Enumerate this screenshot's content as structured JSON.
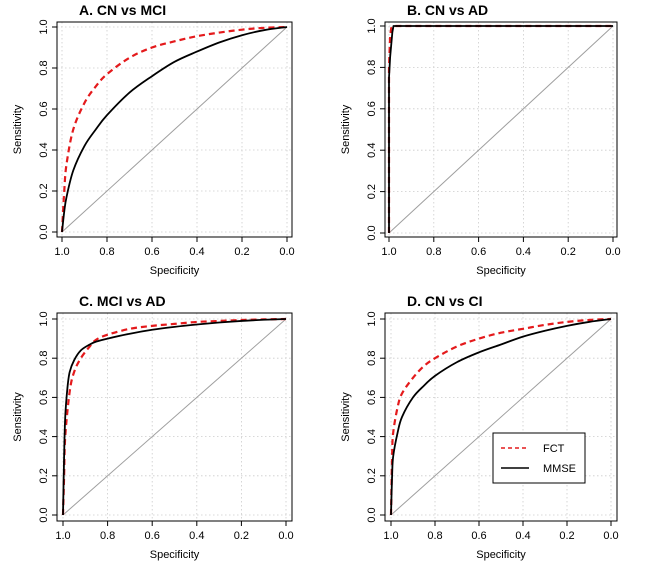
{
  "chart_data": [
    {
      "type": "line",
      "title": "A. CN vs MCI",
      "xlabel": "Specificity",
      "ylabel": "Sensitivity",
      "xlim": [
        1.0,
        0.0
      ],
      "ylim": [
        0.0,
        1.0
      ],
      "x_ticks": [
        "1.0",
        "0.8",
        "0.6",
        "0.4",
        "0.2",
        "0.0"
      ],
      "y_ticks": [
        "0.0",
        "0.2",
        "0.4",
        "0.6",
        "0.8",
        "1.0"
      ],
      "grid": true,
      "diagonal": true,
      "series": [
        {
          "name": "FCT",
          "style": "dashed",
          "color": "#e41a1c",
          "x": [
            1.0,
            0.99,
            0.98,
            0.95,
            0.9,
            0.85,
            0.8,
            0.7,
            0.6,
            0.5,
            0.4,
            0.3,
            0.2,
            0.1,
            0.0
          ],
          "y": [
            0.0,
            0.2,
            0.33,
            0.5,
            0.63,
            0.71,
            0.77,
            0.85,
            0.9,
            0.93,
            0.955,
            0.973,
            0.987,
            0.996,
            1.0
          ]
        },
        {
          "name": "MMSE",
          "style": "solid",
          "color": "#000000",
          "x": [
            1.0,
            0.99,
            0.98,
            0.95,
            0.9,
            0.85,
            0.8,
            0.7,
            0.6,
            0.5,
            0.4,
            0.3,
            0.2,
            0.1,
            0.0
          ],
          "y": [
            0.0,
            0.1,
            0.17,
            0.3,
            0.42,
            0.5,
            0.57,
            0.68,
            0.76,
            0.83,
            0.88,
            0.925,
            0.96,
            0.985,
            1.0
          ]
        }
      ]
    },
    {
      "type": "line",
      "title": "B. CN vs AD",
      "xlabel": "Specificity",
      "ylabel": "Sensitivity",
      "xlim": [
        1.0,
        0.0
      ],
      "ylim": [
        0.0,
        1.0
      ],
      "x_ticks": [
        "1.0",
        "0.8",
        "0.6",
        "0.4",
        "0.2",
        "0.0"
      ],
      "y_ticks": [
        "0.0",
        "0.2",
        "0.4",
        "0.6",
        "0.8",
        "1.0"
      ],
      "grid": true,
      "diagonal": true,
      "series": [
        {
          "name": "FCT",
          "style": "dashed",
          "color": "#e41a1c",
          "x": [
            1.0,
            1.0,
            0.995,
            0.99,
            0.98,
            0.0
          ],
          "y": [
            0.0,
            0.8,
            0.95,
            0.99,
            1.0,
            1.0
          ]
        },
        {
          "name": "MMSE",
          "style": "solid",
          "color": "#000000",
          "x": [
            1.0,
            1.0,
            0.995,
            0.985,
            0.98,
            0.0
          ],
          "y": [
            0.0,
            0.75,
            0.85,
            0.97,
            1.0,
            1.0
          ]
        }
      ]
    },
    {
      "type": "line",
      "title": "C. MCI vs AD",
      "xlabel": "Specificity",
      "ylabel": "Sensitivity",
      "xlim": [
        1.0,
        0.0
      ],
      "ylim": [
        0.0,
        1.0
      ],
      "x_ticks": [
        "1.0",
        "0.8",
        "0.6",
        "0.4",
        "0.2",
        "0.0"
      ],
      "y_ticks": [
        "0.0",
        "0.2",
        "0.4",
        "0.6",
        "0.8",
        "1.0"
      ],
      "grid": true,
      "diagonal": true,
      "series": [
        {
          "name": "FCT",
          "style": "dashed",
          "color": "#e41a1c",
          "x": [
            1.0,
            0.995,
            0.99,
            0.97,
            0.95,
            0.92,
            0.88,
            0.85,
            0.8,
            0.7,
            0.6,
            0.5,
            0.4,
            0.3,
            0.2,
            0.1,
            0.0
          ],
          "y": [
            0.0,
            0.2,
            0.4,
            0.63,
            0.73,
            0.8,
            0.86,
            0.895,
            0.92,
            0.95,
            0.965,
            0.975,
            0.985,
            0.99,
            0.995,
            0.998,
            1.0
          ]
        },
        {
          "name": "MMSE",
          "style": "solid",
          "color": "#000000",
          "x": [
            1.0,
            0.995,
            0.99,
            0.98,
            0.97,
            0.95,
            0.92,
            0.88,
            0.85,
            0.8,
            0.7,
            0.6,
            0.5,
            0.4,
            0.3,
            0.2,
            0.1,
            0.0
          ],
          "y": [
            0.0,
            0.3,
            0.5,
            0.65,
            0.73,
            0.79,
            0.84,
            0.87,
            0.885,
            0.9,
            0.925,
            0.945,
            0.96,
            0.972,
            0.982,
            0.99,
            0.996,
            1.0
          ]
        }
      ]
    },
    {
      "type": "line",
      "title": "D. CN vs CI",
      "xlabel": "Specificity",
      "ylabel": "Sensitivity",
      "xlim": [
        1.0,
        0.0
      ],
      "ylim": [
        0.0,
        1.0
      ],
      "x_ticks": [
        "1.0",
        "0.8",
        "0.6",
        "0.4",
        "0.2",
        "0.0"
      ],
      "y_ticks": [
        "0.0",
        "0.2",
        "0.4",
        "0.6",
        "0.8",
        "1.0"
      ],
      "grid": true,
      "diagonal": true,
      "legend": {
        "placement": "bottom-right",
        "entries": [
          "FCT",
          "MMSE"
        ]
      },
      "series": [
        {
          "name": "FCT",
          "style": "dashed",
          "color": "#e41a1c",
          "x": [
            1.0,
            0.995,
            0.99,
            0.97,
            0.95,
            0.9,
            0.85,
            0.8,
            0.7,
            0.6,
            0.5,
            0.4,
            0.3,
            0.2,
            0.1,
            0.0
          ],
          "y": [
            0.0,
            0.3,
            0.42,
            0.55,
            0.62,
            0.7,
            0.76,
            0.8,
            0.86,
            0.9,
            0.93,
            0.95,
            0.97,
            0.985,
            0.995,
            1.0
          ]
        },
        {
          "name": "MMSE",
          "style": "solid",
          "color": "#000000",
          "x": [
            1.0,
            0.995,
            0.99,
            0.97,
            0.95,
            0.9,
            0.85,
            0.8,
            0.7,
            0.6,
            0.5,
            0.4,
            0.3,
            0.2,
            0.1,
            0.0
          ],
          "y": [
            0.0,
            0.2,
            0.3,
            0.42,
            0.5,
            0.6,
            0.66,
            0.71,
            0.78,
            0.83,
            0.87,
            0.91,
            0.94,
            0.965,
            0.985,
            1.0
          ]
        }
      ]
    }
  ]
}
